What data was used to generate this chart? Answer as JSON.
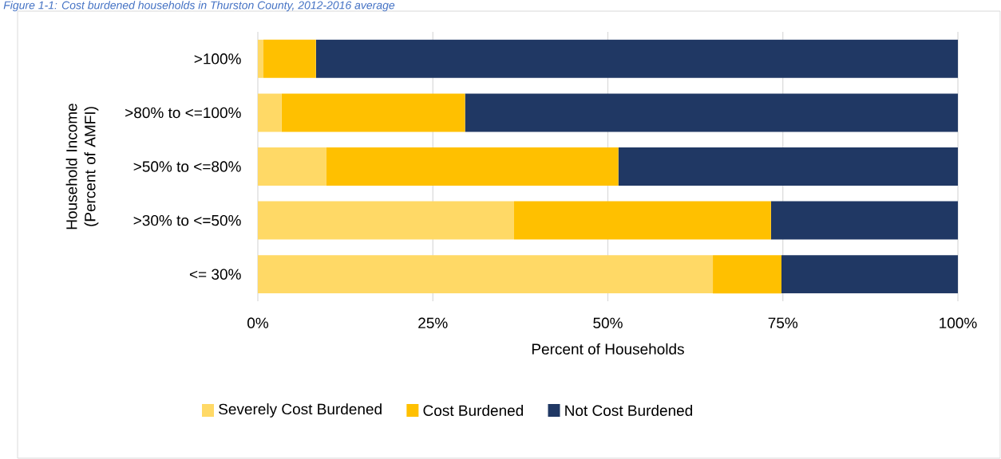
{
  "chart_data": {
    "type": "bar",
    "orientation": "horizontal",
    "stacked": true,
    "title": "Figure 1-1: Cost burdened households in Thurston County, 2012-2016 average",
    "xlabel": "Percent of Households",
    "ylabel": "Household Income (Percent of AMFI)",
    "categories": [
      ">100%",
      ">80% to <=100%",
      ">50% to <=80%",
      ">30% to <=50%",
      "<= 30%"
    ],
    "series": [
      {
        "name": "Severely Cost Burdened",
        "color": "#ffd966",
        "values": [
          0.8,
          3.4,
          9.8,
          36.6,
          65.0
        ]
      },
      {
        "name": "Cost Burdened",
        "color": "#ffc000",
        "values": [
          7.5,
          26.2,
          41.7,
          36.7,
          9.8
        ]
      },
      {
        "name": "Not Cost Burdened",
        "color": "#203864",
        "values": [
          91.7,
          70.4,
          48.5,
          26.7,
          25.2
        ]
      }
    ],
    "xlim": [
      0,
      100
    ],
    "xticks": [
      {
        "value": 0,
        "label": "0%"
      },
      {
        "value": 25,
        "label": "25%"
      },
      {
        "value": 50,
        "label": "50%"
      },
      {
        "value": 75,
        "label": "75%"
      },
      {
        "value": 100,
        "label": "100%"
      }
    ],
    "grid": "x",
    "legend": "bottom"
  }
}
